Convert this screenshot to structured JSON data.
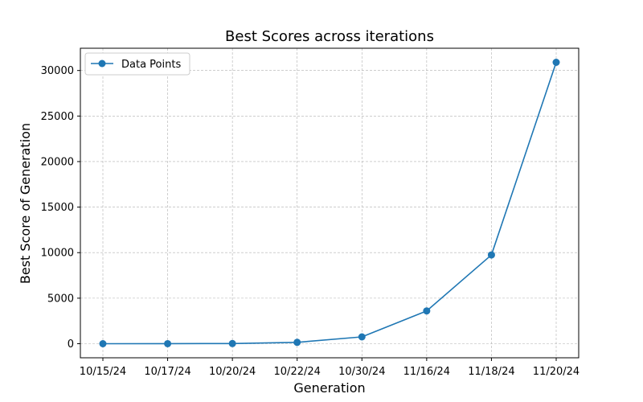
{
  "chart_data": {
    "type": "line",
    "title": "Best Scores across iterations",
    "xlabel": "Generation",
    "ylabel": "Best Score of Generation",
    "categories": [
      "10/15/24",
      "10/17/24",
      "10/20/24",
      "10/22/24",
      "10/30/24",
      "11/16/24",
      "11/18/24",
      "11/20/24"
    ],
    "series": [
      {
        "name": "Data Points",
        "values": [
          0,
          5,
          20,
          150,
          750,
          3600,
          9750,
          30900
        ]
      }
    ],
    "yticks": [
      0,
      5000,
      10000,
      15000,
      20000,
      25000,
      30000
    ],
    "ylim": [
      -1545,
      32445
    ],
    "grid": true,
    "legend_position": "top-left",
    "colors": {
      "line": "#1f77b4",
      "grid": "#b0b0b0"
    },
    "marker": "circle"
  }
}
